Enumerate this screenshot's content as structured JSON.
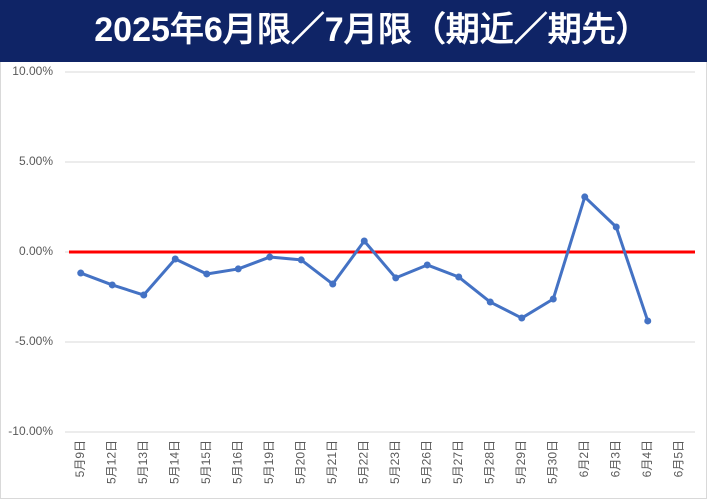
{
  "chart_data": {
    "type": "line",
    "title": "2025年6月限／7月限（期近／期先）",
    "categories": [
      "5月9日",
      "5月12日",
      "5月13日",
      "5月14日",
      "5月15日",
      "5月16日",
      "5月19日",
      "5月20日",
      "5月21日",
      "5月22日",
      "5月23日",
      "5月26日",
      "5月27日",
      "5月28日",
      "5月29日",
      "5月30日",
      "6月2日",
      "6月3日",
      "6月4日",
      "6月5日"
    ],
    "series": [
      {
        "color": "#4472c4",
        "values": [
          -1.17,
          -1.83,
          -2.39,
          -0.39,
          -1.22,
          -0.94,
          -0.28,
          -0.44,
          -1.78,
          0.61,
          -1.44,
          -0.72,
          -1.39,
          -2.78,
          -3.67,
          -2.61,
          3.06,
          1.39,
          -3.83,
          null
        ]
      }
    ],
    "reference_line": {
      "value": 0,
      "color": "#ff0000"
    },
    "ylim": [
      -10,
      10
    ],
    "yticks": [
      {
        "value": -10,
        "label": "-10.00%"
      },
      {
        "value": -5,
        "label": "-5.00%"
      },
      {
        "value": 0,
        "label": "0.00%"
      },
      {
        "value": 5,
        "label": "5.00%"
      },
      {
        "value": 10,
        "label": "10.00%"
      }
    ],
    "grid": true
  }
}
